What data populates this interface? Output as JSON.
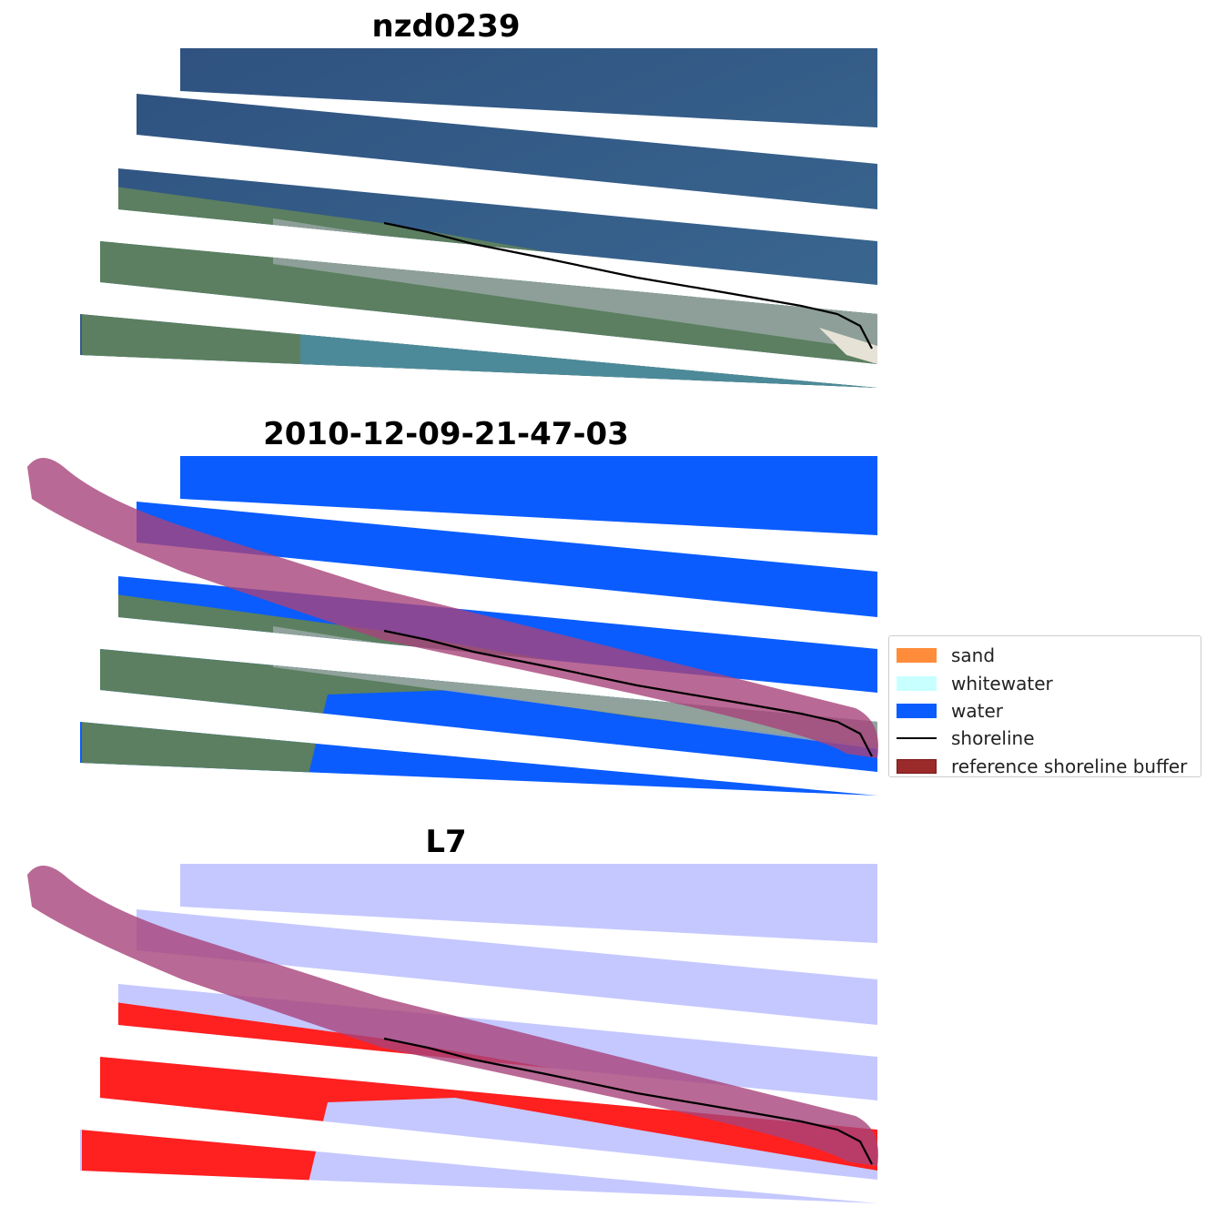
{
  "panels": {
    "rgb": {
      "title": "nzd0239"
    },
    "classified": {
      "title": "2010-12-09-21-47-03"
    },
    "mndwi": {
      "title": "L7"
    }
  },
  "legend": {
    "items": [
      {
        "label": "sand",
        "color": "#ff8c3a"
      },
      {
        "label": "whitewater",
        "color": "#c8ffff"
      },
      {
        "label": "water",
        "color": "#0a5cff"
      },
      {
        "label": "shoreline",
        "color": "#000000"
      },
      {
        "label": "reference shoreline buffer",
        "color": "#9b2a2a"
      }
    ]
  },
  "colors": {
    "ocean_rgb": "#36588a",
    "land_green": "#4f7a58",
    "water_class": "#0a5cff",
    "buffer": "#a8447a",
    "index_high": "#ff2020",
    "index_low": "#c5c8ff"
  }
}
